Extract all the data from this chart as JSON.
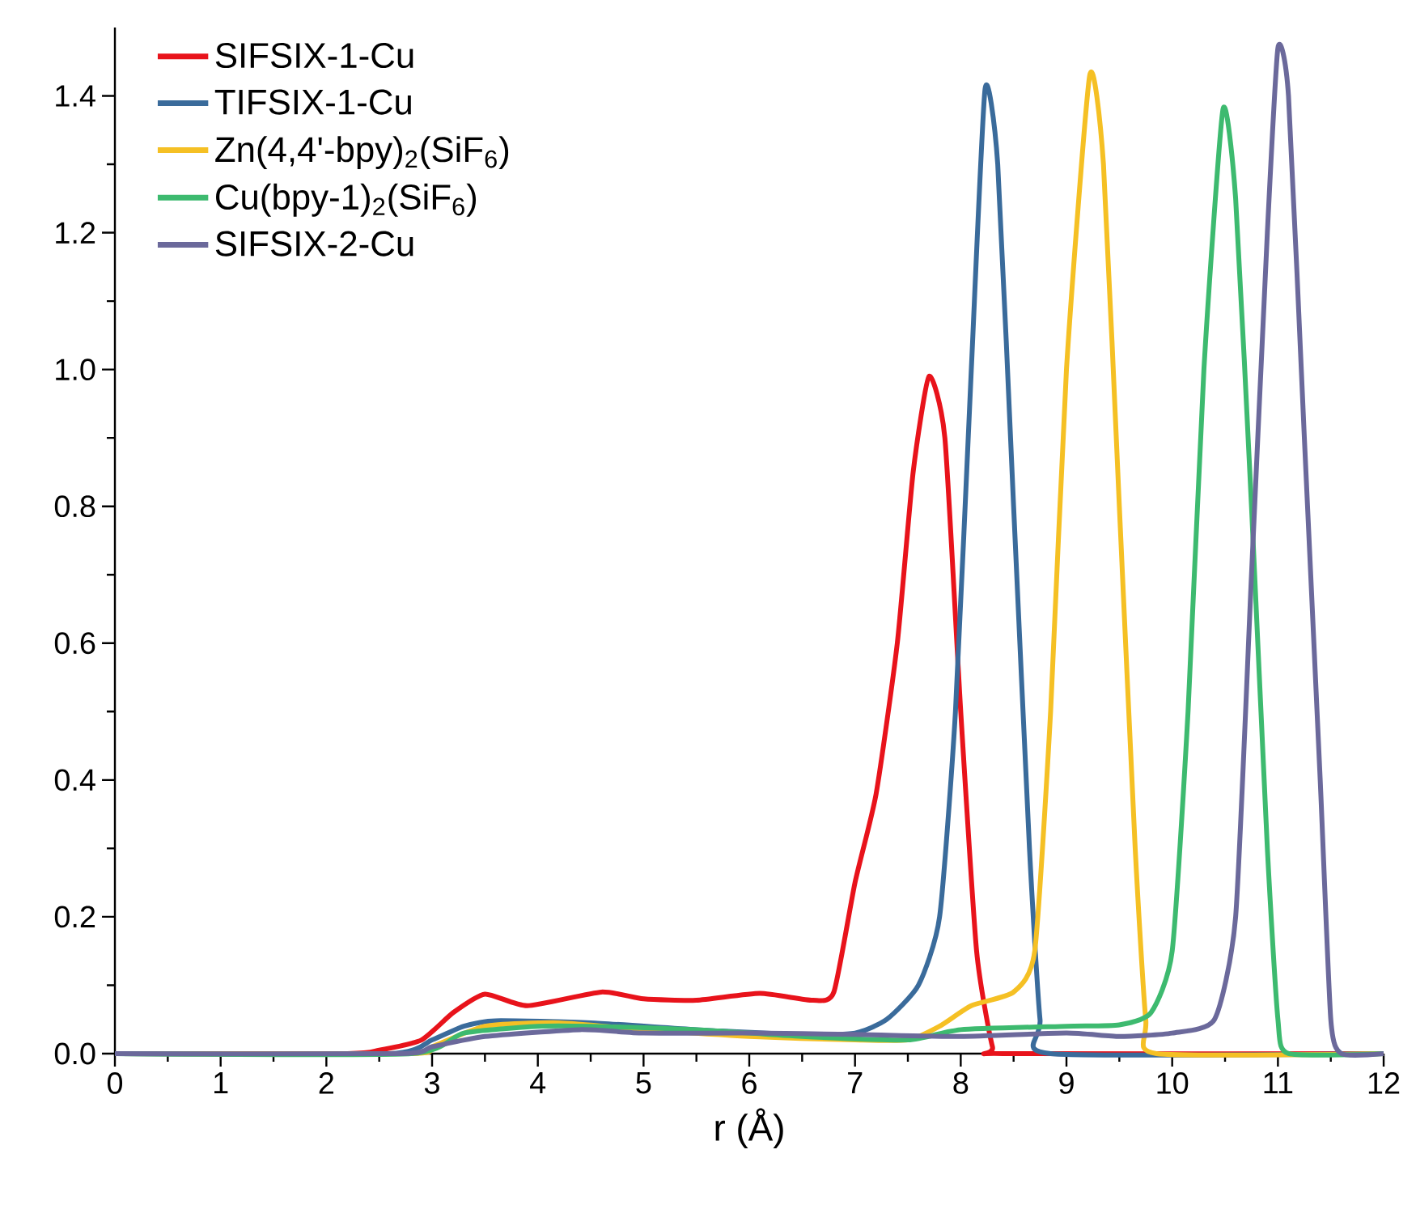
{
  "chart_data": {
    "type": "line",
    "xlabel": "r (Å)",
    "xlim": [
      0,
      12
    ],
    "ylim": [
      0,
      1.5
    ],
    "xticks": [
      0,
      1,
      2,
      3,
      4,
      5,
      6,
      7,
      8,
      9,
      10,
      11,
      12
    ],
    "yticks": [
      {
        "value": 0,
        "label": "0.0"
      },
      {
        "value": 0.2,
        "label": "0.2"
      },
      {
        "value": 0.4,
        "label": "0.4"
      },
      {
        "value": 0.6,
        "label": "0.6"
      },
      {
        "value": 0.8,
        "label": "0.8"
      },
      {
        "value": 1.0,
        "label": "1.0"
      },
      {
        "value": 1.2,
        "label": "1.2"
      },
      {
        "value": 1.4,
        "label": "1.4"
      }
    ],
    "legend": "top left",
    "grid": false,
    "marker": "none",
    "line_style": "solid",
    "series": [
      {
        "name": "SIFSIX-1-Cu",
        "color": "#e8131b",
        "x": [
          0,
          2.2,
          2.5,
          2.9,
          3.2,
          3.5,
          3.9,
          4.6,
          5.0,
          5.5,
          6.1,
          6.6,
          6.8,
          7.0,
          7.2,
          7.4,
          7.55,
          7.7,
          7.85,
          8.0,
          8.15,
          8.3,
          8.4,
          12
        ],
        "values": [
          0,
          0,
          0.005,
          0.02,
          0.06,
          0.087,
          0.07,
          0.09,
          0.08,
          0.078,
          0.088,
          0.078,
          0.09,
          0.25,
          0.38,
          0.6,
          0.85,
          0.99,
          0.9,
          0.5,
          0.15,
          0.01,
          0,
          0
        ]
      },
      {
        "name": "TIFSIX-1-Cu",
        "color": "#3a6b9b",
        "x": [
          0,
          2.6,
          3.0,
          3.3,
          3.6,
          4.5,
          5.5,
          6.5,
          7.0,
          7.3,
          7.6,
          7.8,
          7.95,
          8.1,
          8.23,
          8.35,
          8.5,
          8.65,
          8.75,
          8.85,
          12
        ],
        "values": [
          0,
          0,
          0.02,
          0.04,
          0.048,
          0.045,
          0.035,
          0.028,
          0.03,
          0.05,
          0.1,
          0.2,
          0.5,
          1.0,
          1.41,
          1.3,
          0.8,
          0.3,
          0.05,
          0,
          0
        ]
      },
      {
        "name": "Zn(4,4'-bpy)$_{2}$(SiF$_{6}$)",
        "color": "#f5c024",
        "x": [
          0,
          2.8,
          3.0,
          3.5,
          4.2,
          5.0,
          6.0,
          7.0,
          7.5,
          7.8,
          8.1,
          8.5,
          8.7,
          8.85,
          9.0,
          9.22,
          9.35,
          9.5,
          9.65,
          9.75,
          9.85,
          12
        ],
        "values": [
          0,
          0,
          0.01,
          0.04,
          0.045,
          0.035,
          0.025,
          0.02,
          0.02,
          0.04,
          0.07,
          0.09,
          0.15,
          0.5,
          1.0,
          1.43,
          1.3,
          0.8,
          0.3,
          0.05,
          0,
          0
        ]
      },
      {
        "name": "Cu(bpy-1)$_{2}$(SiF$_{6}$)",
        "color": "#3dba6f",
        "x": [
          0,
          2.8,
          3.3,
          4.0,
          4.5,
          5.5,
          6.5,
          7.5,
          8.0,
          9.0,
          9.5,
          9.8,
          10.0,
          10.15,
          10.3,
          10.48,
          10.6,
          10.75,
          10.9,
          11.0,
          11.1,
          12
        ],
        "values": [
          0,
          0,
          0.03,
          0.04,
          0.04,
          0.035,
          0.025,
          0.02,
          0.035,
          0.04,
          0.042,
          0.06,
          0.15,
          0.5,
          1.0,
          1.38,
          1.25,
          0.8,
          0.3,
          0.05,
          0,
          0
        ]
      },
      {
        "name": "SIFSIX-2-Cu",
        "color": "#6b699b",
        "x": [
          0,
          2.7,
          3.0,
          3.5,
          4.4,
          5.0,
          6.0,
          7.0,
          8.0,
          9.0,
          9.5,
          10.0,
          10.4,
          10.6,
          10.75,
          10.9,
          11.0,
          11.1,
          11.25,
          11.4,
          11.5,
          11.6,
          12
        ],
        "values": [
          0,
          0,
          0.01,
          0.025,
          0.035,
          0.03,
          0.03,
          0.028,
          0.025,
          0.03,
          0.025,
          0.03,
          0.05,
          0.2,
          0.7,
          1.2,
          1.47,
          1.4,
          0.9,
          0.4,
          0.05,
          0,
          0
        ]
      }
    ]
  }
}
